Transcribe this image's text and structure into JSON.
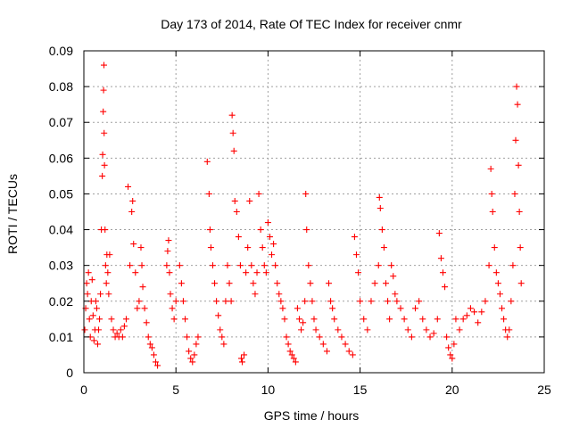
{
  "chart_data": {
    "type": "scatter",
    "title": "Day 173 of 2014, Rate Of TEC Index for receiver cnmr",
    "xlabel": "GPS time / hours",
    "ylabel": "ROTI / TECUs",
    "xlim": [
      0,
      25
    ],
    "ylim": [
      0,
      0.09
    ],
    "xticks": [
      0,
      5,
      10,
      15,
      20,
      25
    ],
    "xtick_labels": [
      "0",
      "5",
      "10",
      "15",
      "20",
      "25"
    ],
    "yticks": [
      0,
      0.01,
      0.02,
      0.03,
      0.04,
      0.05,
      0.06,
      0.07,
      0.08,
      0.09
    ],
    "ytick_labels": [
      "0",
      "0.01",
      "0.02",
      "0.03",
      "0.04",
      "0.05",
      "0.06",
      "0.07",
      "0.08",
      "0.09"
    ],
    "grid": true,
    "marker": "+",
    "color": "#ff0000",
    "series": [
      {
        "name": "ROTI",
        "points": [
          [
            0.05,
            0.012
          ],
          [
            0.1,
            0.018
          ],
          [
            0.15,
            0.025
          ],
          [
            0.2,
            0.022
          ],
          [
            0.25,
            0.028
          ],
          [
            0.3,
            0.015
          ],
          [
            0.35,
            0.01
          ],
          [
            0.4,
            0.02
          ],
          [
            0.45,
            0.026
          ],
          [
            0.5,
            0.016
          ],
          [
            0.55,
            0.009
          ],
          [
            0.6,
            0.012
          ],
          [
            0.65,
            0.02
          ],
          [
            0.7,
            0.018
          ],
          [
            0.75,
            0.008
          ],
          [
            0.8,
            0.012
          ],
          [
            0.85,
            0.015
          ],
          [
            0.9,
            0.022
          ],
          [
            0.95,
            0.04
          ],
          [
            1.0,
            0.055
          ],
          [
            1.02,
            0.061
          ],
          [
            1.05,
            0.073
          ],
          [
            1.07,
            0.079
          ],
          [
            1.09,
            0.086
          ],
          [
            1.1,
            0.067
          ],
          [
            1.12,
            0.058
          ],
          [
            1.15,
            0.04
          ],
          [
            1.18,
            0.03
          ],
          [
            1.22,
            0.025
          ],
          [
            1.25,
            0.033
          ],
          [
            1.3,
            0.028
          ],
          [
            1.35,
            0.022
          ],
          [
            1.4,
            0.033
          ],
          [
            1.5,
            0.015
          ],
          [
            1.6,
            0.012
          ],
          [
            1.7,
            0.01
          ],
          [
            1.8,
            0.011
          ],
          [
            1.9,
            0.01
          ],
          [
            2.0,
            0.012
          ],
          [
            2.1,
            0.01
          ],
          [
            2.2,
            0.013
          ],
          [
            2.3,
            0.015
          ],
          [
            2.4,
            0.052
          ],
          [
            2.5,
            0.03
          ],
          [
            2.6,
            0.045
          ],
          [
            2.65,
            0.048
          ],
          [
            2.7,
            0.036
          ],
          [
            2.8,
            0.028
          ],
          [
            2.9,
            0.018
          ],
          [
            3.0,
            0.02
          ],
          [
            3.1,
            0.035
          ],
          [
            3.15,
            0.03
          ],
          [
            3.2,
            0.024
          ],
          [
            3.3,
            0.018
          ],
          [
            3.4,
            0.014
          ],
          [
            3.5,
            0.01
          ],
          [
            3.6,
            0.008
          ],
          [
            3.7,
            0.007
          ],
          [
            3.8,
            0.005
          ],
          [
            3.9,
            0.003
          ],
          [
            4.0,
            0.002
          ],
          [
            4.5,
            0.03
          ],
          [
            4.55,
            0.034
          ],
          [
            4.6,
            0.037
          ],
          [
            4.65,
            0.028
          ],
          [
            4.7,
            0.022
          ],
          [
            4.8,
            0.018
          ],
          [
            4.9,
            0.015
          ],
          [
            5.0,
            0.02
          ],
          [
            5.2,
            0.03
          ],
          [
            5.3,
            0.025
          ],
          [
            5.4,
            0.02
          ],
          [
            5.5,
            0.015
          ],
          [
            5.6,
            0.01
          ],
          [
            5.7,
            0.006
          ],
          [
            5.8,
            0.004
          ],
          [
            5.9,
            0.003
          ],
          [
            6.0,
            0.005
          ],
          [
            6.1,
            0.008
          ],
          [
            6.2,
            0.01
          ],
          [
            6.7,
            0.059
          ],
          [
            6.8,
            0.05
          ],
          [
            6.85,
            0.04
          ],
          [
            6.9,
            0.035
          ],
          [
            7.0,
            0.03
          ],
          [
            7.1,
            0.025
          ],
          [
            7.2,
            0.02
          ],
          [
            7.3,
            0.016
          ],
          [
            7.4,
            0.012
          ],
          [
            7.5,
            0.01
          ],
          [
            7.6,
            0.008
          ],
          [
            7.7,
            0.02
          ],
          [
            7.8,
            0.03
          ],
          [
            7.9,
            0.025
          ],
          [
            8.0,
            0.02
          ],
          [
            8.05,
            0.072
          ],
          [
            8.1,
            0.067
          ],
          [
            8.15,
            0.062
          ],
          [
            8.2,
            0.048
          ],
          [
            8.3,
            0.045
          ],
          [
            8.4,
            0.038
          ],
          [
            8.5,
            0.03
          ],
          [
            8.55,
            0.004
          ],
          [
            8.6,
            0.003
          ],
          [
            8.7,
            0.005
          ],
          [
            8.8,
            0.028
          ],
          [
            8.9,
            0.035
          ],
          [
            9.0,
            0.048
          ],
          [
            9.1,
            0.03
          ],
          [
            9.2,
            0.025
          ],
          [
            9.3,
            0.022
          ],
          [
            9.4,
            0.028
          ],
          [
            9.5,
            0.05
          ],
          [
            9.6,
            0.04
          ],
          [
            9.7,
            0.035
          ],
          [
            9.8,
            0.03
          ],
          [
            9.9,
            0.028
          ],
          [
            10.0,
            0.042
          ],
          [
            10.1,
            0.038
          ],
          [
            10.2,
            0.033
          ],
          [
            10.3,
            0.036
          ],
          [
            10.4,
            0.03
          ],
          [
            10.5,
            0.025
          ],
          [
            10.6,
            0.022
          ],
          [
            10.7,
            0.02
          ],
          [
            10.8,
            0.018
          ],
          [
            10.9,
            0.015
          ],
          [
            11.0,
            0.01
          ],
          [
            11.1,
            0.008
          ],
          [
            11.2,
            0.006
          ],
          [
            11.3,
            0.005
          ],
          [
            11.4,
            0.004
          ],
          [
            11.5,
            0.003
          ],
          [
            11.6,
            0.018
          ],
          [
            11.7,
            0.015
          ],
          [
            11.8,
            0.012
          ],
          [
            11.9,
            0.014
          ],
          [
            12.0,
            0.02
          ],
          [
            12.05,
            0.05
          ],
          [
            12.1,
            0.04
          ],
          [
            12.2,
            0.03
          ],
          [
            12.3,
            0.025
          ],
          [
            12.4,
            0.02
          ],
          [
            12.5,
            0.015
          ],
          [
            12.6,
            0.012
          ],
          [
            12.8,
            0.01
          ],
          [
            13.0,
            0.008
          ],
          [
            13.2,
            0.006
          ],
          [
            13.3,
            0.025
          ],
          [
            13.4,
            0.02
          ],
          [
            13.5,
            0.018
          ],
          [
            13.6,
            0.015
          ],
          [
            13.8,
            0.012
          ],
          [
            14.0,
            0.01
          ],
          [
            14.2,
            0.008
          ],
          [
            14.4,
            0.006
          ],
          [
            14.6,
            0.005
          ],
          [
            14.7,
            0.038
          ],
          [
            14.8,
            0.033
          ],
          [
            14.9,
            0.028
          ],
          [
            15.0,
            0.02
          ],
          [
            15.2,
            0.015
          ],
          [
            15.4,
            0.012
          ],
          [
            15.6,
            0.02
          ],
          [
            15.8,
            0.025
          ],
          [
            16.0,
            0.03
          ],
          [
            16.05,
            0.049
          ],
          [
            16.1,
            0.046
          ],
          [
            16.2,
            0.04
          ],
          [
            16.3,
            0.035
          ],
          [
            16.4,
            0.025
          ],
          [
            16.5,
            0.02
          ],
          [
            16.6,
            0.015
          ],
          [
            16.7,
            0.03
          ],
          [
            16.8,
            0.027
          ],
          [
            16.9,
            0.022
          ],
          [
            17.0,
            0.02
          ],
          [
            17.2,
            0.018
          ],
          [
            17.4,
            0.015
          ],
          [
            17.6,
            0.012
          ],
          [
            17.8,
            0.01
          ],
          [
            18.0,
            0.018
          ],
          [
            18.2,
            0.02
          ],
          [
            18.4,
            0.015
          ],
          [
            18.6,
            0.012
          ],
          [
            18.8,
            0.01
          ],
          [
            19.0,
            0.011
          ],
          [
            19.2,
            0.015
          ],
          [
            19.3,
            0.039
          ],
          [
            19.4,
            0.032
          ],
          [
            19.5,
            0.028
          ],
          [
            19.6,
            0.024
          ],
          [
            19.7,
            0.01
          ],
          [
            19.8,
            0.007
          ],
          [
            19.9,
            0.005
          ],
          [
            20.0,
            0.004
          ],
          [
            20.1,
            0.008
          ],
          [
            20.2,
            0.015
          ],
          [
            20.4,
            0.012
          ],
          [
            20.6,
            0.015
          ],
          [
            20.8,
            0.016
          ],
          [
            21.0,
            0.018
          ],
          [
            21.2,
            0.017
          ],
          [
            21.4,
            0.014
          ],
          [
            21.6,
            0.017
          ],
          [
            21.8,
            0.02
          ],
          [
            22.0,
            0.03
          ],
          [
            22.1,
            0.057
          ],
          [
            22.15,
            0.05
          ],
          [
            22.2,
            0.045
          ],
          [
            22.3,
            0.035
          ],
          [
            22.4,
            0.028
          ],
          [
            22.5,
            0.025
          ],
          [
            22.6,
            0.022
          ],
          [
            22.7,
            0.018
          ],
          [
            22.8,
            0.015
          ],
          [
            22.9,
            0.012
          ],
          [
            23.0,
            0.01
          ],
          [
            23.1,
            0.012
          ],
          [
            23.2,
            0.02
          ],
          [
            23.3,
            0.03
          ],
          [
            23.4,
            0.05
          ],
          [
            23.45,
            0.065
          ],
          [
            23.5,
            0.08
          ],
          [
            23.55,
            0.075
          ],
          [
            23.6,
            0.058
          ],
          [
            23.65,
            0.045
          ],
          [
            23.7,
            0.035
          ],
          [
            23.75,
            0.025
          ]
        ]
      }
    ]
  }
}
